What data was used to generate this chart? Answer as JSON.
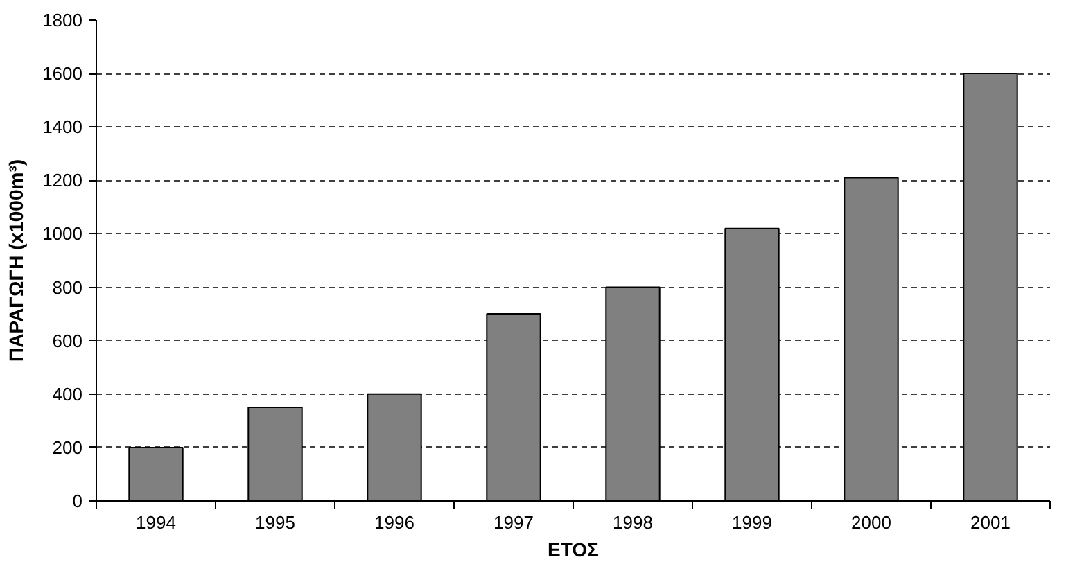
{
  "chart_data": {
    "type": "bar",
    "xlabel": "ΕΤΟΣ",
    "ylabel": "ΠΑΡΑΓΩΓΗ (x1000m³)",
    "categories": [
      "1994",
      "1995",
      "1996",
      "1997",
      "1998",
      "1999",
      "2000",
      "2001"
    ],
    "values": [
      200,
      350,
      400,
      700,
      800,
      1020,
      1210,
      1600
    ],
    "color": "#808080",
    "ylim": [
      0,
      1800
    ],
    "yticks": [
      0,
      200,
      400,
      600,
      800,
      1000,
      1200,
      1400,
      1600,
      1800
    ],
    "grid": "y"
  }
}
